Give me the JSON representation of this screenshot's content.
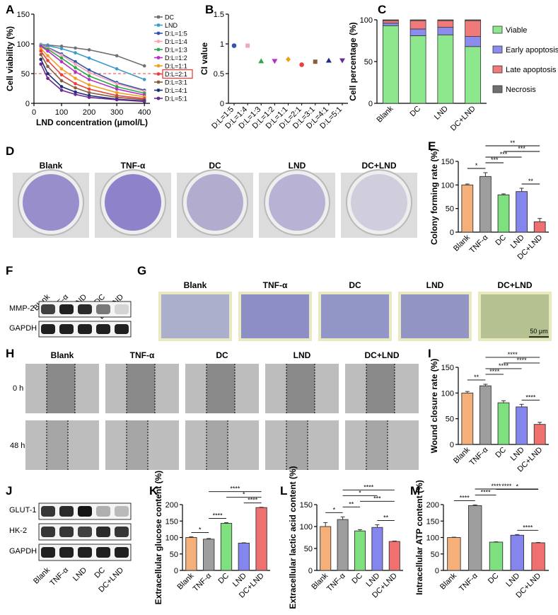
{
  "panel_labels": {
    "A": "A",
    "B": "B",
    "C": "C",
    "D": "D",
    "E": "E",
    "F": "F",
    "G": "G",
    "H": "H",
    "I": "I",
    "J": "J",
    "K": "K",
    "L": "L",
    "M": "M"
  },
  "groups5": [
    "Blank",
    "TNF-α",
    "DC",
    "LND",
    "DC+LND"
  ],
  "colors": {
    "Blank": "#f5b07a",
    "TNF": "#9e9e9e",
    "DC": "#7ee07e",
    "LND": "#8585ee",
    "DCLND": "#f07070"
  },
  "stain": {
    "Blank": "#7c6ec0",
    "TNF": "#6e5fbd",
    "DC": "#9d96c4",
    "LND": "#a69fcc",
    "DCLND": "#c6c3d6"
  },
  "blot": {
    "F": {
      "lanes": [
        "Blank",
        "TNF-α",
        "LND",
        "DC",
        "DC+LND"
      ],
      "rows": [
        {
          "name": "MMP-2",
          "levels": [
            0.75,
            0.9,
            0.85,
            0.5,
            0.08
          ]
        },
        {
          "name": "GAPDH",
          "levels": [
            0.9,
            0.9,
            0.9,
            0.9,
            0.9
          ]
        }
      ]
    },
    "J": {
      "lanes": [
        "Blank",
        "TNF-α",
        "LND",
        "DC",
        "DC+LND"
      ],
      "rows": [
        {
          "name": "GLUT-1",
          "levels": [
            0.8,
            0.85,
            0.95,
            0.25,
            0.2
          ]
        },
        {
          "name": "HK-2",
          "levels": [
            0.8,
            0.8,
            0.75,
            0.85,
            0.8
          ]
        },
        {
          "name": "GAPDH",
          "levels": [
            0.9,
            0.9,
            0.9,
            0.9,
            0.9
          ]
        }
      ]
    }
  },
  "G_scale": "50 μm",
  "H_rows": [
    "0 h",
    "48 h"
  ],
  "chart_data": [
    {
      "id": "A",
      "type": "line",
      "xlabel": "LND concentration (μmol/L)",
      "ylabel": "Cell viability (%)",
      "xlim": [
        0,
        420
      ],
      "ylim": [
        0,
        150
      ],
      "xticks": [
        0,
        100,
        200,
        300,
        400
      ],
      "yticks": [
        0,
        50,
        100,
        150
      ],
      "reference_y": 50,
      "highlight": "D:L=2:1",
      "x": [
        25,
        50,
        100,
        150,
        200,
        300,
        400
      ],
      "series": [
        {
          "name": "DC",
          "color": "#707070",
          "values": [
            99,
            98,
            96,
            93,
            90,
            80,
            63
          ]
        },
        {
          "name": "LND",
          "color": "#3a9acb",
          "values": [
            99,
            97,
            92,
            85,
            76,
            58,
            40
          ]
        },
        {
          "name": "D:L=1:5",
          "color": "#2e56b0",
          "values": [
            98,
            94,
            83,
            70,
            56,
            35,
            22
          ]
        },
        {
          "name": "D:L=1:4",
          "color": "#f5a6b6",
          "values": [
            98,
            93,
            81,
            66,
            52,
            33,
            20
          ]
        },
        {
          "name": "D:L=1:3",
          "color": "#2fa84a",
          "values": [
            97,
            91,
            76,
            60,
            46,
            28,
            17
          ]
        },
        {
          "name": "D:L=1:2",
          "color": "#b42fc6",
          "values": [
            96,
            88,
            70,
            53,
            40,
            24,
            14
          ]
        },
        {
          "name": "D:L=1:1",
          "color": "#f0a020",
          "values": [
            92,
            80,
            58,
            42,
            31,
            18,
            11
          ]
        },
        {
          "name": "D:L=2:1",
          "color": "#e8403a",
          "values": [
            88,
            72,
            48,
            33,
            24,
            13,
            8
          ]
        },
        {
          "name": "D:L=3:1",
          "color": "#8a5d3b",
          "values": [
            82,
            62,
            38,
            26,
            18,
            10,
            6
          ]
        },
        {
          "name": "D:L=4:1",
          "color": "#1f2e80",
          "values": [
            74,
            50,
            28,
            19,
            13,
            7,
            4
          ]
        },
        {
          "name": "D:L=5:1",
          "color": "#6a2a90",
          "values": [
            66,
            42,
            22,
            15,
            10,
            6,
            3
          ]
        }
      ]
    },
    {
      "id": "B",
      "type": "scatter",
      "ylabel": "CI value",
      "ylim": [
        0,
        1.5
      ],
      "yticks": [
        0.0,
        0.5,
        1.0,
        1.5
      ],
      "categories": [
        "D:L=1:5",
        "D:L=1:4",
        "D:L=1:3",
        "D:L=1:2",
        "D:L=1:1",
        "D:L=2:1",
        "D:L=3:1",
        "D:L=4:1",
        "D:L=5:1"
      ],
      "values": [
        0.97,
        0.97,
        0.71,
        0.71,
        0.74,
        0.65,
        0.7,
        0.72,
        0.72
      ],
      "colors": [
        "#2e56b0",
        "#f5a6b6",
        "#2fa84a",
        "#b42fc6",
        "#f0a020",
        "#e8403a",
        "#8a5d3b",
        "#1f2e80",
        "#6a2a90"
      ],
      "shapes": [
        "circle",
        "square",
        "triangle",
        "triangle-down",
        "diamond",
        "circle",
        "square",
        "triangle",
        "triangle-down"
      ]
    },
    {
      "id": "C",
      "type": "bar",
      "stacked": true,
      "ylabel": "Cell percentage (%)",
      "ylim": [
        0,
        100
      ],
      "yticks": [
        0,
        50,
        100
      ],
      "categories": [
        "Blank",
        "DC",
        "LND",
        "DC+LND"
      ],
      "series": [
        {
          "name": "Viable",
          "color": "#8de88d",
          "values": [
            93,
            81,
            82,
            68
          ]
        },
        {
          "name": "Early apoptosis",
          "color": "#8c8cf0",
          "values": [
            3,
            8,
            9,
            12
          ]
        },
        {
          "name": "Late apoptosis",
          "color": "#f07a7a",
          "values": [
            3,
            10,
            8,
            19
          ]
        },
        {
          "name": "Necrosis",
          "color": "#707070",
          "values": [
            1,
            1,
            1,
            1
          ]
        }
      ]
    },
    {
      "id": "E",
      "type": "bar",
      "ylabel": "Colony forming rate (%)",
      "ylim": [
        0,
        150
      ],
      "yticks": [
        0,
        50,
        100,
        150
      ],
      "categories": [
        "Blank",
        "TNF-α",
        "DC",
        "LND",
        "DC+LND"
      ],
      "values": [
        100,
        118,
        79,
        86,
        22
      ],
      "errors": [
        2,
        8,
        2,
        7,
        7
      ],
      "sig": [
        {
          "a": 0,
          "b": 1,
          "label": "*"
        },
        {
          "a": 1,
          "b": 2,
          "label": "***"
        },
        {
          "a": 1,
          "b": 3,
          "label": "***"
        },
        {
          "a": 1,
          "b": 4,
          "label": "**"
        },
        {
          "a": 3,
          "b": 4,
          "label": "**"
        },
        {
          "a": 2,
          "b": 4,
          "label": "***"
        }
      ]
    },
    {
      "id": "I",
      "type": "bar",
      "ylabel": "Wound closure rate (%)",
      "ylim": [
        0,
        150
      ],
      "yticks": [
        0,
        50,
        100,
        150
      ],
      "categories": [
        "Blank",
        "TNF-α",
        "DC",
        "LND",
        "DC+LND"
      ],
      "values": [
        100,
        114,
        81,
        73,
        39
      ],
      "errors": [
        3,
        3,
        4,
        5,
        4
      ],
      "sig": [
        {
          "a": 0,
          "b": 1,
          "label": "**"
        },
        {
          "a": 1,
          "b": 2,
          "label": "****"
        },
        {
          "a": 1,
          "b": 3,
          "label": "****"
        },
        {
          "a": 1,
          "b": 4,
          "label": "****"
        },
        {
          "a": 3,
          "b": 4,
          "label": "****"
        },
        {
          "a": 2,
          "b": 4,
          "label": "****"
        }
      ]
    },
    {
      "id": "K",
      "type": "bar",
      "ylabel": "Extracellular glucose content (%)",
      "ylim": [
        0,
        200
      ],
      "yticks": [
        0,
        50,
        100,
        150,
        200
      ],
      "categories": [
        "Blank",
        "TNF-α",
        "DC",
        "LND",
        "DC+LND"
      ],
      "values": [
        100,
        95,
        143,
        83,
        191
      ],
      "errors": [
        2,
        2,
        2,
        1,
        1
      ],
      "sig": [
        {
          "a": 0,
          "b": 1,
          "label": "*"
        },
        {
          "a": 1,
          "b": 2,
          "label": "****"
        },
        {
          "a": 3,
          "b": 4,
          "label": "****"
        },
        {
          "a": 2,
          "b": 4,
          "label": "*"
        },
        {
          "a": 1,
          "b": 4,
          "label": "****"
        }
      ]
    },
    {
      "id": "L",
      "type": "bar",
      "ylabel": "Extracellular lactic acid content (%)",
      "ylim": [
        0,
        150
      ],
      "yticks": [
        0,
        50,
        100,
        150
      ],
      "categories": [
        "Blank",
        "TNF-α",
        "DC",
        "LND",
        "DC+LND"
      ],
      "values": [
        100,
        116,
        90,
        98,
        66
      ],
      "errors": [
        9,
        6,
        3,
        6,
        1
      ],
      "sig": [
        {
          "a": 0,
          "b": 1,
          "label": "*"
        },
        {
          "a": 1,
          "b": 2,
          "label": "**"
        },
        {
          "a": 3,
          "b": 4,
          "label": "**"
        },
        {
          "a": 2,
          "b": 4,
          "label": "***"
        },
        {
          "a": 1,
          "b": 3,
          "label": "*"
        },
        {
          "a": 1,
          "b": 4,
          "label": "****"
        }
      ]
    },
    {
      "id": "M",
      "type": "bar",
      "ylabel": "Intracellular ATP content (%)",
      "ylim": [
        0,
        200
      ],
      "yticks": [
        0,
        50,
        100,
        150,
        200
      ],
      "categories": [
        "Blank",
        "TNF-α",
        "DC",
        "LND",
        "DC+LND"
      ],
      "values": [
        100,
        197,
        86,
        107,
        84
      ],
      "errors": [
        1,
        2,
        1,
        2,
        1
      ],
      "sig": [
        {
          "a": 0,
          "b": 1,
          "label": "****"
        },
        {
          "a": 1,
          "b": 2,
          "label": "****"
        },
        {
          "a": 3,
          "b": 4,
          "label": "****"
        },
        {
          "a": 2,
          "b": 4,
          "label": "*"
        },
        {
          "a": 1,
          "b": 3,
          "label": "****"
        },
        {
          "a": 1,
          "b": 4,
          "label": "****"
        }
      ]
    }
  ]
}
